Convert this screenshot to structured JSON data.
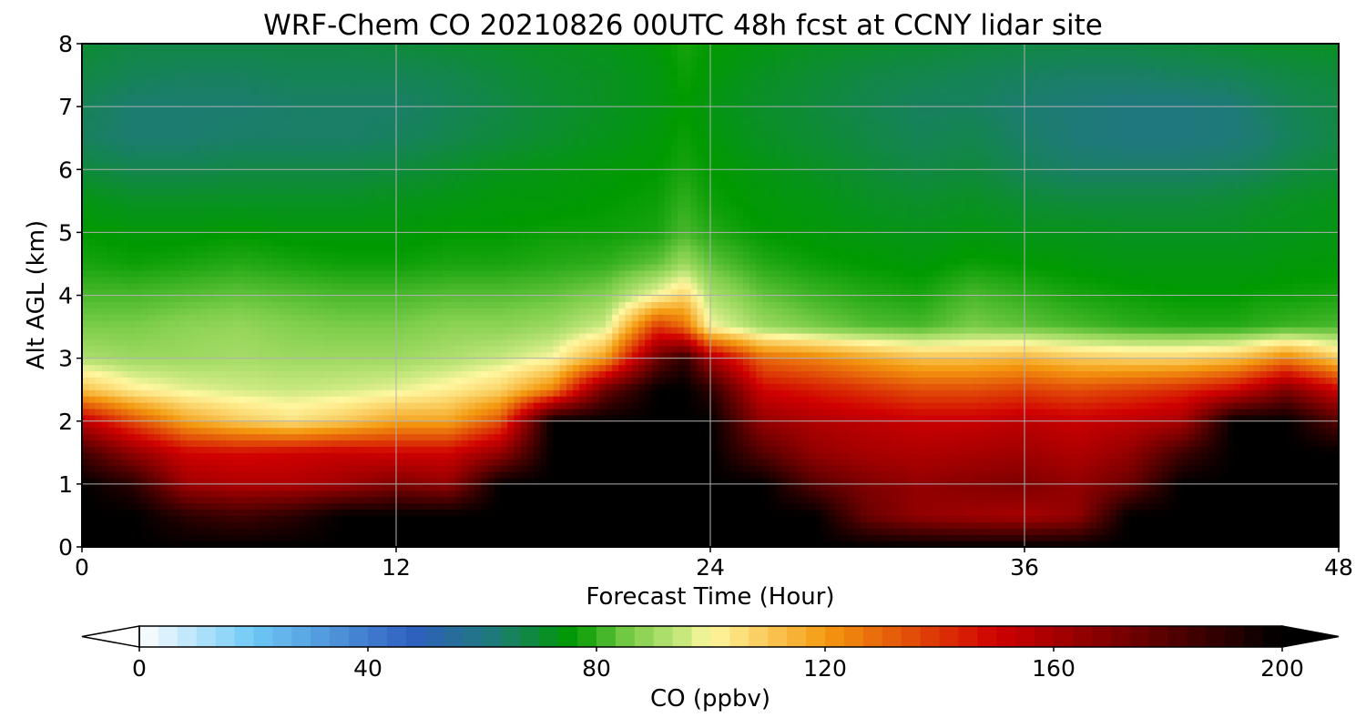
{
  "chart_data": {
    "type": "heatmap",
    "title": "WRF-Chem CO  20210826 00UTC 48h fcst at CCNY lidar site",
    "xlabel": "Forecast Time (Hour)",
    "ylabel": "Alt AGL (km)",
    "xlim": [
      0,
      48
    ],
    "ylim": [
      0,
      8
    ],
    "xticks": [
      0,
      12,
      24,
      36,
      48
    ],
    "yticks": [
      0,
      1,
      2,
      3,
      4,
      5,
      6,
      7,
      8
    ],
    "grid": true,
    "colorbar": {
      "label": "CO  (ppbv)",
      "range": [
        0,
        200
      ],
      "ticks": [
        0,
        40,
        80,
        120,
        160,
        200
      ],
      "extend": "both",
      "orientation": "horizontal",
      "position": "bottom"
    },
    "colormap_stops": [
      {
        "value": 0,
        "color": "#ffffff"
      },
      {
        "value": 20,
        "color": "#6ec8f5"
      },
      {
        "value": 48,
        "color": "#2e5fbf"
      },
      {
        "value": 62,
        "color": "#1e7a78"
      },
      {
        "value": 76,
        "color": "#009a00"
      },
      {
        "value": 86,
        "color": "#7ccd4a"
      },
      {
        "value": 95,
        "color": "#c8e87e"
      },
      {
        "value": 100,
        "color": "#fff7a0"
      },
      {
        "value": 120,
        "color": "#f49a10"
      },
      {
        "value": 150,
        "color": "#d00000"
      },
      {
        "value": 175,
        "color": "#6b0000"
      },
      {
        "value": 200,
        "color": "#000000"
      }
    ],
    "time_hours": [
      0,
      2,
      4,
      6,
      8,
      10,
      12,
      14,
      16,
      18,
      20,
      22,
      23,
      24,
      26,
      28,
      30,
      32,
      34,
      36,
      38,
      40,
      42,
      44,
      45,
      46,
      48
    ],
    "altitude_km": [
      0,
      0.5,
      1,
      1.5,
      2,
      2.5,
      3,
      3.5,
      4,
      4.5,
      5,
      5.5,
      6,
      6.5,
      7,
      7.5,
      8
    ],
    "co_ppbv": [
      [
        200,
        200,
        200,
        200,
        200,
        200,
        200,
        200,
        200,
        200,
        200,
        200,
        200,
        200,
        200,
        200,
        200,
        200,
        200,
        200,
        200,
        200,
        200,
        200,
        200,
        200,
        200
      ],
      [
        200,
        200,
        190,
        185,
        190,
        200,
        200,
        200,
        200,
        200,
        200,
        200,
        200,
        200,
        200,
        200,
        175,
        165,
        162,
        160,
        165,
        200,
        200,
        200,
        200,
        200,
        200
      ],
      [
        200,
        190,
        162,
        158,
        158,
        162,
        170,
        165,
        200,
        200,
        200,
        200,
        200,
        200,
        200,
        180,
        170,
        165,
        168,
        170,
        165,
        175,
        200,
        200,
        200,
        200,
        200
      ],
      [
        185,
        165,
        150,
        148,
        150,
        152,
        150,
        150,
        165,
        200,
        200,
        200,
        200,
        200,
        180,
        165,
        160,
        158,
        160,
        162,
        158,
        165,
        185,
        200,
        200,
        200,
        200
      ],
      [
        155,
        135,
        118,
        110,
        105,
        110,
        118,
        118,
        135,
        200,
        200,
        200,
        200,
        200,
        165,
        158,
        155,
        152,
        152,
        155,
        152,
        155,
        160,
        200,
        200,
        200,
        180
      ],
      [
        112,
        102,
        98,
        96,
        95,
        96,
        98,
        102,
        108,
        125,
        175,
        200,
        200,
        190,
        150,
        145,
        140,
        135,
        135,
        138,
        135,
        138,
        142,
        150,
        160,
        170,
        150
      ],
      [
        92,
        90,
        90,
        91,
        90,
        90,
        90,
        92,
        95,
        100,
        120,
        175,
        190,
        160,
        130,
        125,
        118,
        112,
        112,
        115,
        110,
        108,
        108,
        112,
        118,
        125,
        110
      ],
      [
        86,
        86,
        88,
        89,
        87,
        86,
        86,
        88,
        88,
        90,
        96,
        140,
        130,
        100,
        90,
        86,
        83,
        82,
        86,
        84,
        82,
        80,
        79,
        79,
        80,
        81,
        82
      ],
      [
        82,
        82,
        83,
        84,
        83,
        82,
        82,
        83,
        83,
        84,
        87,
        100,
        108,
        92,
        84,
        81,
        79,
        78,
        82,
        80,
        78,
        77,
        76,
        76,
        77,
        77,
        78
      ],
      [
        78,
        77,
        78,
        79,
        78,
        77,
        77,
        78,
        78,
        79,
        80,
        84,
        90,
        84,
        79,
        77,
        76,
        75,
        77,
        76,
        75,
        74,
        74,
        74,
        74,
        75,
        75
      ],
      [
        76,
        75,
        75,
        76,
        75,
        75,
        75,
        76,
        76,
        77,
        77,
        78,
        82,
        79,
        76,
        75,
        74,
        73,
        74,
        73,
        73,
        72,
        72,
        72,
        73,
        73,
        74
      ],
      [
        74,
        72,
        72,
        72,
        72,
        72,
        73,
        74,
        75,
        75,
        76,
        77,
        80,
        77,
        75,
        74,
        72,
        71,
        72,
        70,
        69,
        69,
        69,
        70,
        71,
        72,
        73
      ],
      [
        69,
        67,
        67,
        68,
        68,
        68,
        69,
        71,
        73,
        74,
        75,
        76,
        78,
        76,
        74,
        72,
        70,
        68,
        69,
        66,
        64,
        64,
        64,
        65,
        66,
        68,
        70
      ],
      [
        65,
        63,
        63,
        64,
        64,
        64,
        65,
        67,
        69,
        71,
        73,
        75,
        77,
        75,
        72,
        70,
        68,
        66,
        67,
        64,
        62,
        61,
        61,
        62,
        63,
        65,
        68
      ],
      [
        66,
        63,
        63,
        63,
        64,
        64,
        64,
        66,
        68,
        70,
        72,
        74,
        76,
        74,
        71,
        69,
        67,
        65,
        65,
        63,
        62,
        61,
        61,
        62,
        64,
        66,
        68
      ],
      [
        68,
        66,
        65,
        65,
        66,
        66,
        66,
        67,
        69,
        71,
        72,
        74,
        77,
        75,
        72,
        70,
        68,
        67,
        66,
        65,
        64,
        64,
        65,
        66,
        67,
        68,
        69
      ],
      [
        70,
        68,
        68,
        68,
        68,
        68,
        69,
        70,
        71,
        72,
        73,
        75,
        78,
        76,
        74,
        72,
        71,
        70,
        69,
        68,
        68,
        68,
        69,
        70,
        71,
        71,
        72
      ]
    ]
  }
}
